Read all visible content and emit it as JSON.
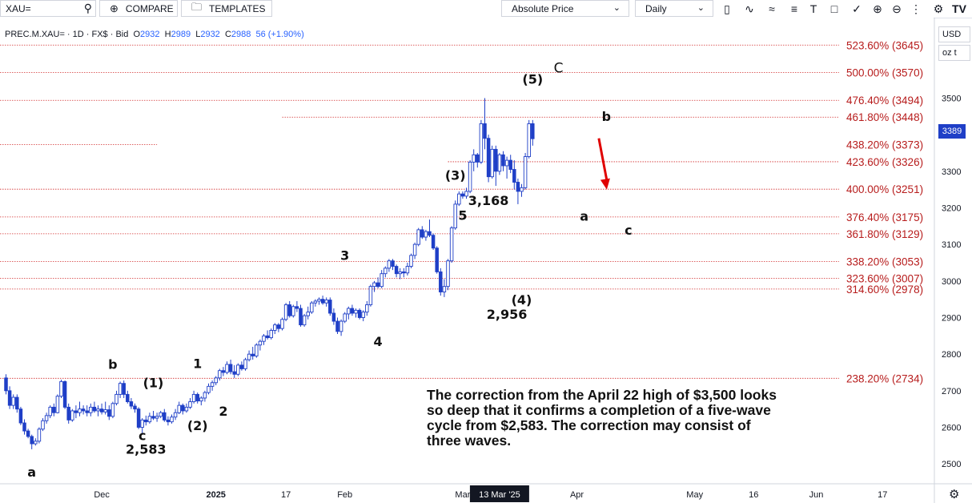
{
  "toolbar": {
    "symbol": "XAU=",
    "compare_label": "COMPARE",
    "templates_label": "TEMPLATES",
    "price_scale_label": "Absolute Price",
    "interval_label": "Daily",
    "tool_icons": [
      "candle-icon",
      "line-icon",
      "wave-icon",
      "fib-icon",
      "text-icon",
      "shape-icon",
      "brush-icon",
      "zoom-in-icon",
      "zoom-out-icon",
      "settings-icon"
    ]
  },
  "legend": {
    "symbol": "PREC.M.XAU= · 1D · FX$ · Bid",
    "open_label": "O",
    "open": "2932",
    "high_label": "H",
    "high": "2989",
    "low_label": "L",
    "low": "2932",
    "close_label": "C",
    "close": "2988",
    "change": "56 (+1.90%)"
  },
  "price_axis": {
    "currency": "USD",
    "unit": "oz t",
    "last_price": "3389"
  },
  "annotation_text": "The correction from the April 22 high of $3,500 looks so deep that it confirms a completion of a five-wave cycle from $2,583.  The correction may consist of three waves.",
  "colors": {
    "candle_up": "#1f3fc7",
    "candle_down": "#1f3fc7",
    "fib_line": "#d32f2f",
    "fib_text": "#b71c1c",
    "arrow": "#e00000",
    "crosshair_tag": "#131722"
  },
  "chart_data": {
    "type": "candlestick",
    "y_range": [
      2450,
      3720
    ],
    "y_ticks": [
      2500,
      2600,
      2700,
      2800,
      2900,
      3000,
      3100,
      3200,
      3300,
      3400,
      3500
    ],
    "x_labels": [
      {
        "label": "Dec",
        "idx": 26
      },
      {
        "label": "2025",
        "idx": 57
      },
      {
        "label": "17",
        "idx": 76
      },
      {
        "label": "Feb",
        "idx": 92
      },
      {
        "label": "Mar",
        "idx": 124
      },
      {
        "label": "13 Mar '25",
        "idx": 134,
        "highlight": true
      },
      {
        "label": "Apr",
        "idx": 155
      },
      {
        "label": "May",
        "idx": 187
      },
      {
        "label": "16",
        "idx": 203
      },
      {
        "label": "Jun",
        "idx": 220
      },
      {
        "label": "17",
        "idx": 238
      }
    ],
    "fib_levels": [
      {
        "label": "523.60% (3645)",
        "price": 3645,
        "x0_idx": 0
      },
      {
        "label": "500.00% (3570)",
        "price": 3570,
        "x0_idx": 0
      },
      {
        "label": "476.40% (3494)",
        "price": 3494,
        "x0_idx": 0
      },
      {
        "label": "461.80% (3448)",
        "price": 3448,
        "x0_idx": 75
      },
      {
        "label": "438.20% (3373)",
        "price": 3373,
        "x0_idx": 0,
        "x1_idx": 41
      },
      {
        "label": "423.60% (3326)",
        "price": 3326,
        "x0_idx": 120
      },
      {
        "label": "400.00% (3251)",
        "price": 3251,
        "x0_idx": 0
      },
      {
        "label": "376.40% (3175)",
        "price": 3175,
        "x0_idx": 0
      },
      {
        "label": "361.80% (3129)",
        "price": 3129,
        "x0_idx": 0
      },
      {
        "label": "338.20% (3053)",
        "price": 3053,
        "x0_idx": 0
      },
      {
        "label": "323.60% (3007)",
        "price": 3007,
        "x0_idx": 0
      },
      {
        "label": "314.60% (2978)",
        "price": 2978,
        "x0_idx": 0
      },
      {
        "label": "238.20% (2734)",
        "price": 2734,
        "x0_idx": 0
      }
    ],
    "candles": [
      [
        2735,
        2745,
        2690,
        2700
      ],
      [
        2700,
        2712,
        2650,
        2660
      ],
      [
        2660,
        2690,
        2650,
        2682
      ],
      [
        2682,
        2690,
        2640,
        2650
      ],
      [
        2650,
        2656,
        2606,
        2612
      ],
      [
        2612,
        2622,
        2580,
        2590
      ],
      [
        2590,
        2596,
        2570,
        2575
      ],
      [
        2575,
        2580,
        2540,
        2555
      ],
      [
        2555,
        2570,
        2550,
        2562
      ],
      [
        2562,
        2600,
        2556,
        2595
      ],
      [
        2595,
        2625,
        2590,
        2618
      ],
      [
        2618,
        2640,
        2610,
        2632
      ],
      [
        2632,
        2660,
        2625,
        2655
      ],
      [
        2655,
        2665,
        2630,
        2640
      ],
      [
        2640,
        2690,
        2638,
        2685
      ],
      [
        2685,
        2730,
        2680,
        2725
      ],
      [
        2725,
        2728,
        2650,
        2655
      ],
      [
        2655,
        2665,
        2610,
        2620
      ],
      [
        2620,
        2650,
        2615,
        2645
      ],
      [
        2645,
        2660,
        2625,
        2640
      ],
      [
        2640,
        2670,
        2630,
        2650
      ],
      [
        2650,
        2660,
        2635,
        2645
      ],
      [
        2645,
        2660,
        2630,
        2640
      ],
      [
        2640,
        2665,
        2630,
        2655
      ],
      [
        2655,
        2670,
        2640,
        2645
      ],
      [
        2645,
        2660,
        2630,
        2650
      ],
      [
        2650,
        2665,
        2635,
        2642
      ],
      [
        2642,
        2670,
        2635,
        2648
      ],
      [
        2648,
        2660,
        2620,
        2630
      ],
      [
        2630,
        2670,
        2625,
        2665
      ],
      [
        2665,
        2700,
        2660,
        2690
      ],
      [
        2690,
        2725,
        2680,
        2720
      ],
      [
        2720,
        2728,
        2680,
        2690
      ],
      [
        2690,
        2700,
        2665,
        2670
      ],
      [
        2670,
        2680,
        2650,
        2658
      ],
      [
        2658,
        2665,
        2640,
        2650
      ],
      [
        2650,
        2655,
        2595,
        2600
      ],
      [
        2600,
        2625,
        2583,
        2620
      ],
      [
        2620,
        2632,
        2605,
        2615
      ],
      [
        2615,
        2640,
        2610,
        2630
      ],
      [
        2630,
        2645,
        2620,
        2625
      ],
      [
        2625,
        2640,
        2615,
        2630
      ],
      [
        2630,
        2645,
        2625,
        2640
      ],
      [
        2640,
        2650,
        2615,
        2620
      ],
      [
        2620,
        2630,
        2605,
        2615
      ],
      [
        2615,
        2635,
        2610,
        2628
      ],
      [
        2628,
        2650,
        2620,
        2640
      ],
      [
        2640,
        2670,
        2636,
        2660
      ],
      [
        2660,
        2665,
        2635,
        2645
      ],
      [
        2645,
        2665,
        2640,
        2655
      ],
      [
        2655,
        2680,
        2650,
        2670
      ],
      [
        2670,
        2700,
        2665,
        2690
      ],
      [
        2690,
        2695,
        2665,
        2672
      ],
      [
        2672,
        2685,
        2660,
        2680
      ],
      [
        2680,
        2700,
        2670,
        2695
      ],
      [
        2695,
        2720,
        2690,
        2712
      ],
      [
        2712,
        2728,
        2700,
        2722
      ],
      [
        2722,
        2740,
        2715,
        2735
      ],
      [
        2735,
        2760,
        2728,
        2755
      ],
      [
        2755,
        2765,
        2740,
        2750
      ],
      [
        2750,
        2780,
        2745,
        2772
      ],
      [
        2772,
        2785,
        2745,
        2752
      ],
      [
        2752,
        2770,
        2735,
        2745
      ],
      [
        2745,
        2775,
        2740,
        2770
      ],
      [
        2770,
        2780,
        2755,
        2760
      ],
      [
        2760,
        2790,
        2755,
        2785
      ],
      [
        2785,
        2810,
        2780,
        2800
      ],
      [
        2800,
        2820,
        2785,
        2795
      ],
      [
        2795,
        2830,
        2790,
        2825
      ],
      [
        2825,
        2840,
        2810,
        2835
      ],
      [
        2835,
        2855,
        2825,
        2850
      ],
      [
        2850,
        2865,
        2840,
        2845
      ],
      [
        2845,
        2870,
        2840,
        2865
      ],
      [
        2865,
        2885,
        2855,
        2880
      ],
      [
        2880,
        2885,
        2860,
        2870
      ],
      [
        2870,
        2900,
        2865,
        2895
      ],
      [
        2895,
        2940,
        2890,
        2935
      ],
      [
        2935,
        2945,
        2900,
        2905
      ],
      [
        2905,
        2935,
        2900,
        2930
      ],
      [
        2930,
        2945,
        2915,
        2925
      ],
      [
        2925,
        2935,
        2875,
        2880
      ],
      [
        2880,
        2910,
        2875,
        2905
      ],
      [
        2905,
        2930,
        2895,
        2915
      ],
      [
        2915,
        2945,
        2910,
        2940
      ],
      [
        2940,
        2950,
        2930,
        2945
      ],
      [
        2945,
        2955,
        2935,
        2950
      ],
      [
        2950,
        2960,
        2935,
        2940
      ],
      [
        2940,
        2955,
        2930,
        2948
      ],
      [
        2948,
        2955,
        2905,
        2912
      ],
      [
        2912,
        2925,
        2880,
        2890
      ],
      [
        2890,
        2900,
        2855,
        2862
      ],
      [
        2862,
        2895,
        2850,
        2890
      ],
      [
        2890,
        2915,
        2885,
        2910
      ],
      [
        2910,
        2930,
        2895,
        2925
      ],
      [
        2925,
        2935,
        2905,
        2912
      ],
      [
        2912,
        2925,
        2900,
        2920
      ],
      [
        2920,
        2925,
        2895,
        2900
      ],
      [
        2900,
        2920,
        2890,
        2915
      ],
      [
        2915,
        2945,
        2905,
        2935
      ],
      [
        2935,
        2990,
        2930,
        2985
      ],
      [
        2985,
        3000,
        2970,
        2995
      ],
      [
        2995,
        3010,
        2980,
        2985
      ],
      [
        2985,
        3030,
        2980,
        3020
      ],
      [
        3020,
        3040,
        3010,
        3035
      ],
      [
        3035,
        3060,
        3025,
        3055
      ],
      [
        3055,
        3060,
        3030,
        3040
      ],
      [
        3040,
        3045,
        3010,
        3020
      ],
      [
        3020,
        3035,
        3005,
        3025
      ],
      [
        3025,
        3035,
        3010,
        3022
      ],
      [
        3022,
        3050,
        3015,
        3040
      ],
      [
        3040,
        3075,
        3035,
        3070
      ],
      [
        3070,
        3105,
        3060,
        3100
      ],
      [
        3100,
        3145,
        3095,
        3140
      ],
      [
        3140,
        3150,
        3115,
        3120
      ],
      [
        3120,
        3140,
        3110,
        3135
      ],
      [
        3135,
        3168,
        3120,
        3125
      ],
      [
        3125,
        3130,
        3085,
        3090
      ],
      [
        3090,
        3095,
        3020,
        3025
      ],
      [
        3025,
        3035,
        2960,
        2970
      ],
      [
        2970,
        3005,
        2956,
        2985
      ],
      [
        2985,
        3060,
        2975,
        3055
      ],
      [
        3055,
        3150,
        3050,
        3145
      ],
      [
        3145,
        3220,
        3140,
        3210
      ],
      [
        3210,
        3245,
        3205,
        3238
      ],
      [
        3238,
        3245,
        3225,
        3232
      ],
      [
        3232,
        3255,
        3225,
        3245
      ],
      [
        3245,
        3330,
        3240,
        3325
      ],
      [
        3325,
        3360,
        3300,
        3345
      ],
      [
        3345,
        3350,
        3310,
        3325
      ],
      [
        3325,
        3440,
        3320,
        3430
      ],
      [
        3430,
        3500,
        3360,
        3390
      ],
      [
        3390,
        3400,
        3270,
        3285
      ],
      [
        3285,
        3370,
        3280,
        3360
      ],
      [
        3360,
        3370,
        3260,
        3300
      ],
      [
        3300,
        3350,
        3290,
        3345
      ],
      [
        3345,
        3355,
        3300,
        3315
      ],
      [
        3315,
        3340,
        3280,
        3330
      ],
      [
        3330,
        3345,
        3295,
        3305
      ],
      [
        3305,
        3330,
        3250,
        3270
      ],
      [
        3270,
        3280,
        3210,
        3245
      ],
      [
        3245,
        3265,
        3230,
        3255
      ],
      [
        3255,
        3350,
        3250,
        3340
      ],
      [
        3340,
        3440,
        3335,
        3430
      ],
      [
        3430,
        3440,
        3370,
        3389
      ]
    ],
    "wave_labels": [
      {
        "text": "a",
        "idx": 7,
        "price": 2465
      },
      {
        "text": "b",
        "idx": 29,
        "price": 2760
      },
      {
        "text": "(1)",
        "idx": 40,
        "price": 2710
      },
      {
        "text": "c",
        "idx": 37,
        "price": 2565
      },
      {
        "text": "2,583",
        "idx": 38,
        "price": 2528
      },
      {
        "text": "1",
        "idx": 52,
        "price": 2762
      },
      {
        "text": "(2)",
        "idx": 52,
        "price": 2592
      },
      {
        "text": "2",
        "idx": 59,
        "price": 2632
      },
      {
        "text": "3",
        "idx": 92,
        "price": 3058
      },
      {
        "text": "4",
        "idx": 101,
        "price": 2822
      },
      {
        "text": "(3)",
        "idx": 122,
        "price": 3277
      },
      {
        "text": "5",
        "idx": 124,
        "price": 3167
      },
      {
        "text": "3,168",
        "idx": 131,
        "price": 3208
      },
      {
        "text": "(4)",
        "idx": 140,
        "price": 2936
      },
      {
        "text": "2,956",
        "idx": 136,
        "price": 2897
      },
      {
        "text": "(5)",
        "idx": 143,
        "price": 3539
      },
      {
        "text": "C",
        "idx": 150,
        "price": 3570
      },
      {
        "text": "b",
        "idx": 163,
        "price": 3438
      },
      {
        "text": "a",
        "idx": 157,
        "price": 3165
      },
      {
        "text": "c",
        "idx": 169,
        "price": 3127
      }
    ]
  }
}
